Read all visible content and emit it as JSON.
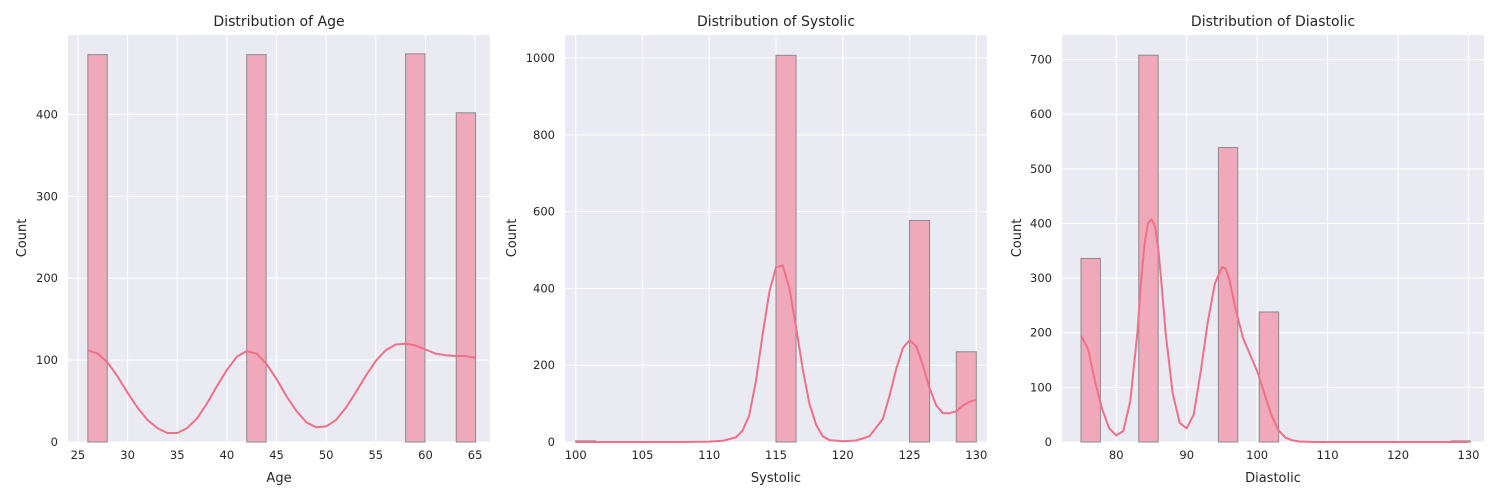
{
  "chart_data": [
    {
      "type": "bar",
      "title": "Distribution of Age",
      "xlabel": "Age",
      "ylabel": "Count",
      "xlim": [
        24,
        66.5
      ],
      "ylim": [
        0,
        497
      ],
      "xticks": [
        25,
        30,
        35,
        40,
        45,
        50,
        55,
        60,
        65
      ],
      "yticks": [
        0,
        100,
        200,
        300,
        400
      ],
      "bin_width": 1.95,
      "bars": [
        {
          "x": 26,
          "value": 473
        },
        {
          "x": 42,
          "value": 473
        },
        {
          "x": 58,
          "value": 474
        },
        {
          "x": 63.1,
          "value": 402
        }
      ],
      "kde": {
        "x": [
          26,
          27,
          28,
          29,
          30,
          31,
          32,
          33,
          34,
          35,
          36,
          37,
          38,
          39,
          40,
          41,
          42,
          43,
          44,
          45,
          46,
          47,
          48,
          49,
          50,
          51,
          52,
          53,
          54,
          55,
          56,
          57,
          58,
          59,
          60,
          61,
          62,
          63,
          64,
          65
        ],
        "y": [
          112,
          108,
          97,
          80,
          60,
          42,
          27,
          17,
          11,
          11,
          17,
          29,
          47,
          68,
          88,
          104,
          111,
          108,
          95,
          77,
          56,
          38,
          24,
          18,
          19,
          27,
          42,
          61,
          81,
          99,
          112,
          119,
          120,
          118,
          113,
          108,
          106,
          105,
          105,
          103
        ]
      },
      "grid": true
    },
    {
      "type": "bar",
      "title": "Distribution of Systolic",
      "xlabel": "Systolic",
      "ylabel": "Count",
      "xlim": [
        99.2,
        130.8
      ],
      "ylim": [
        0,
        1060
      ],
      "xticks": [
        100,
        105,
        110,
        115,
        120,
        125,
        130
      ],
      "yticks": [
        0,
        200,
        400,
        600,
        800,
        1000
      ],
      "bin_width": 1.5,
      "bars": [
        {
          "x": 100,
          "value": 3
        },
        {
          "x": 115,
          "value": 1007
        },
        {
          "x": 125,
          "value": 577
        },
        {
          "x": 128.5,
          "value": 235
        }
      ],
      "kde": {
        "x": [
          100,
          105,
          108,
          110,
          111,
          112,
          112.5,
          113,
          113.5,
          114,
          114.5,
          115,
          115.5,
          116,
          116.5,
          117,
          117.5,
          118,
          118.5,
          119,
          120,
          121,
          122,
          123,
          123.5,
          124,
          124.5,
          125,
          125.5,
          126,
          126.5,
          127,
          127.5,
          128,
          128.5,
          129,
          129.5,
          130
        ],
        "y": [
          0,
          0,
          0,
          1,
          3,
          12,
          30,
          70,
          160,
          280,
          390,
          455,
          460,
          400,
          300,
          190,
          100,
          45,
          15,
          5,
          2,
          4,
          15,
          60,
          120,
          190,
          245,
          265,
          250,
          200,
          140,
          95,
          75,
          75,
          80,
          95,
          105,
          110
        ]
      },
      "grid": true
    },
    {
      "type": "bar",
      "title": "Distribution of Diastolic",
      "xlabel": "Diastolic",
      "ylabel": "Count",
      "xlim": [
        72.3,
        132.2
      ],
      "ylim": [
        0,
        745
      ],
      "xticks": [
        80,
        90,
        100,
        110,
        120,
        130
      ],
      "yticks": [
        0,
        100,
        200,
        300,
        400,
        500,
        600,
        700
      ],
      "bin_width": 2.75,
      "bars": [
        {
          "x": 75,
          "value": 336
        },
        {
          "x": 83.2,
          "value": 708
        },
        {
          "x": 94.5,
          "value": 539
        },
        {
          "x": 100.3,
          "value": 238
        },
        {
          "x": 127.5,
          "value": 2
        }
      ],
      "kde": {
        "x": [
          75,
          76,
          77,
          78,
          79,
          80,
          81,
          82,
          83,
          83.5,
          84,
          84.5,
          85,
          85.5,
          86,
          86.5,
          87,
          88,
          89,
          90,
          91,
          92,
          93,
          94,
          95,
          95.5,
          96,
          97,
          98,
          99,
          100,
          101,
          102,
          103,
          104,
          105,
          106,
          108,
          110,
          115,
          120,
          125,
          130
        ],
        "y": [
          195,
          170,
          110,
          60,
          25,
          12,
          20,
          75,
          200,
          290,
          360,
          400,
          408,
          395,
          350,
          280,
          200,
          90,
          35,
          25,
          50,
          130,
          220,
          290,
          320,
          318,
          300,
          240,
          190,
          160,
          130,
          90,
          50,
          22,
          8,
          3,
          1,
          0,
          0,
          0,
          0,
          0,
          0
        ]
      },
      "grid": true
    }
  ],
  "colors": {
    "bar_fill": "#f0a9ba",
    "bar_edge": "#8a8a8a",
    "kde_line": "#f07088",
    "axes_bg": "#eaeaf2",
    "grid": "#ffffff",
    "text": "#262626"
  }
}
